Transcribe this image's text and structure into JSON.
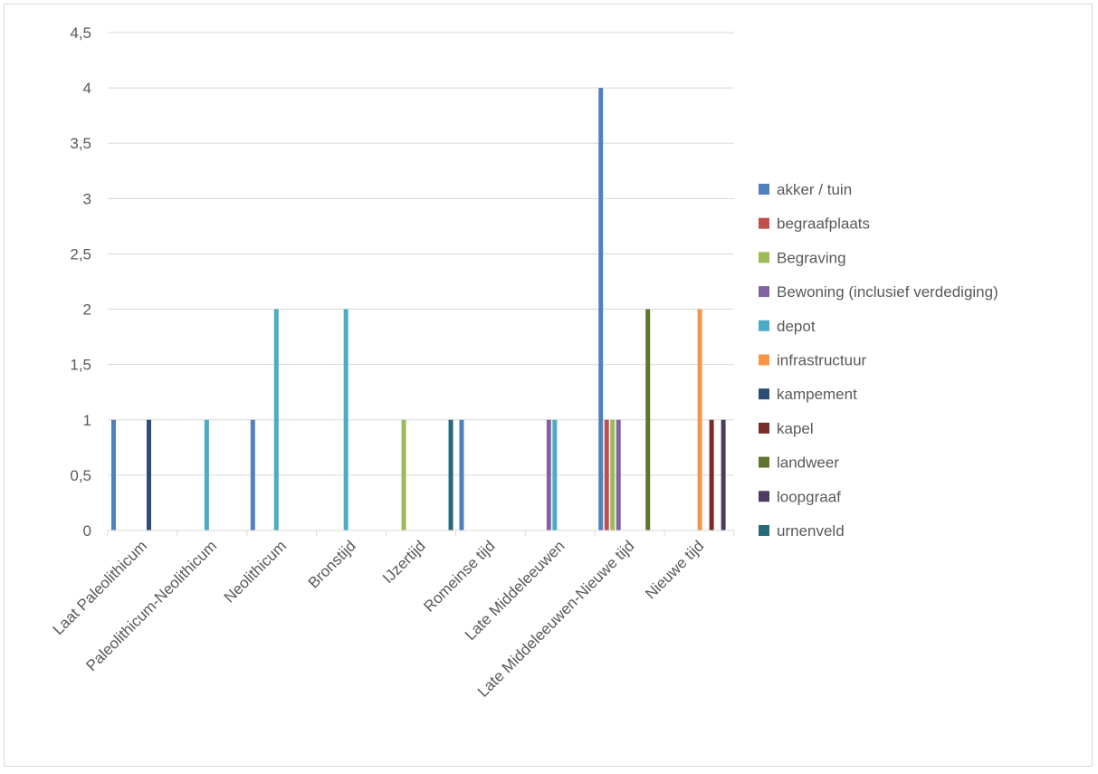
{
  "chart_data": {
    "type": "bar",
    "title": "",
    "xlabel": "",
    "ylabel": "",
    "ylim": [
      0,
      4.5
    ],
    "yticks": [
      "0",
      "0,5",
      "1",
      "1,5",
      "2",
      "2,5",
      "3",
      "3,5",
      "4",
      "4,5"
    ],
    "grid": true,
    "legend_position": "right",
    "categories": [
      "Laat Paleolithicum",
      "Paleolithicum-Neolithicum",
      "Neolithicum",
      "Bronstijd",
      "IJzertijd",
      "Romeinse tijd",
      "Late Middeleeuwen",
      "Late Middeleeuwen-Nieuwe tijd",
      "Nieuwe tijd"
    ],
    "series": [
      {
        "name": "akker / tuin",
        "color": "#4f81bd",
        "values": [
          1,
          null,
          1,
          null,
          null,
          1,
          null,
          4,
          null
        ]
      },
      {
        "name": "begraafplaats",
        "color": "#c0504d",
        "values": [
          null,
          null,
          null,
          null,
          null,
          null,
          null,
          1,
          null
        ]
      },
      {
        "name": "Begraving",
        "color": "#9bbb59",
        "values": [
          null,
          null,
          null,
          null,
          1,
          null,
          null,
          1,
          null
        ]
      },
      {
        "name": "Bewoning (inclusief verdediging)",
        "color": "#8064a2",
        "values": [
          null,
          null,
          null,
          null,
          null,
          null,
          1,
          1,
          null
        ]
      },
      {
        "name": "depot",
        "color": "#4bacc6",
        "values": [
          null,
          1,
          2,
          2,
          null,
          null,
          1,
          null,
          null
        ]
      },
      {
        "name": "infrastructuur",
        "color": "#f79646",
        "values": [
          null,
          null,
          null,
          null,
          null,
          null,
          null,
          null,
          2
        ]
      },
      {
        "name": "kampement",
        "color": "#2c4d75",
        "values": [
          1,
          null,
          null,
          null,
          null,
          null,
          null,
          null,
          null
        ]
      },
      {
        "name": "kapel",
        "color": "#772c2a",
        "values": [
          null,
          null,
          null,
          null,
          null,
          null,
          null,
          null,
          1
        ]
      },
      {
        "name": "landweer",
        "color": "#5f7530",
        "values": [
          null,
          null,
          null,
          null,
          null,
          null,
          null,
          2,
          null
        ]
      },
      {
        "name": "loopgraaf",
        "color": "#4d3b62",
        "values": [
          null,
          null,
          null,
          null,
          null,
          null,
          null,
          null,
          1
        ]
      },
      {
        "name": "urnenveld",
        "color": "#276a7c",
        "values": [
          null,
          null,
          null,
          null,
          1,
          null,
          null,
          null,
          null
        ]
      }
    ]
  }
}
